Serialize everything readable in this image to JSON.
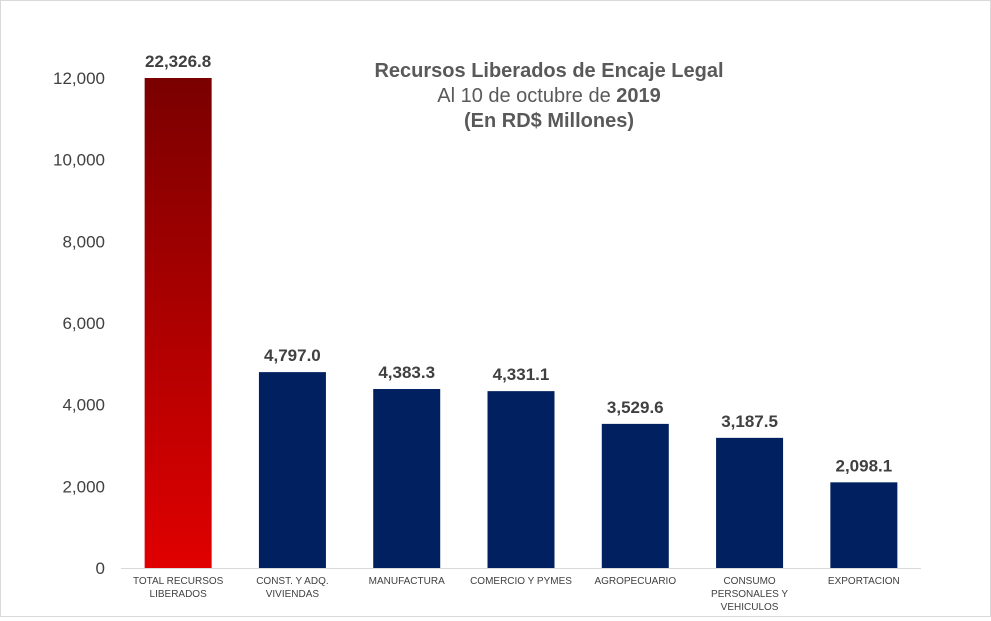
{
  "chart_data": {
    "type": "bar",
    "title_line1": "Recursos Liberados de Encaje Legal",
    "title_line2_prefix": "Al 10 de octubre de ",
    "title_line2_year": "2019",
    "title_line3": "(En RD$ Millones)",
    "xlabel": "",
    "ylabel": "",
    "ylim": [
      0,
      12000
    ],
    "yticks": [
      0,
      2000,
      4000,
      6000,
      8000,
      10000,
      12000
    ],
    "ytick_labels": [
      "0",
      "2,000",
      "4,000",
      "6,000",
      "8,000",
      "10,000",
      "12,000"
    ],
    "grid": false,
    "categories": [
      [
        "TOTAL RECURSOS",
        "LIBERADOS"
      ],
      [
        "CONST. Y ADQ.",
        "VIVIENDAS"
      ],
      [
        "MANUFACTURA"
      ],
      [
        "COMERCIO Y PYMES"
      ],
      [
        "AGROPECUARIO"
      ],
      [
        "CONSUMO",
        "PERSONALES Y",
        "VEHICULOS"
      ],
      [
        "EXPORTACION"
      ]
    ],
    "values": [
      22326.8,
      4797.0,
      4383.3,
      4331.1,
      3529.6,
      3187.5,
      2098.1
    ],
    "value_labels": [
      "22,326.8",
      "4,797.0",
      "4,383.3",
      "4,331.1",
      "3,529.6",
      "3,187.5",
      "2,098.1"
    ],
    "bar_colors": [
      "gradient-red",
      "#002060",
      "#002060",
      "#002060",
      "#002060",
      "#002060",
      "#002060"
    ],
    "gradient_top": "#7a0000",
    "gradient_bottom": "#e00000",
    "axis_color": "#d9d9d9",
    "text_color": "#404040"
  }
}
